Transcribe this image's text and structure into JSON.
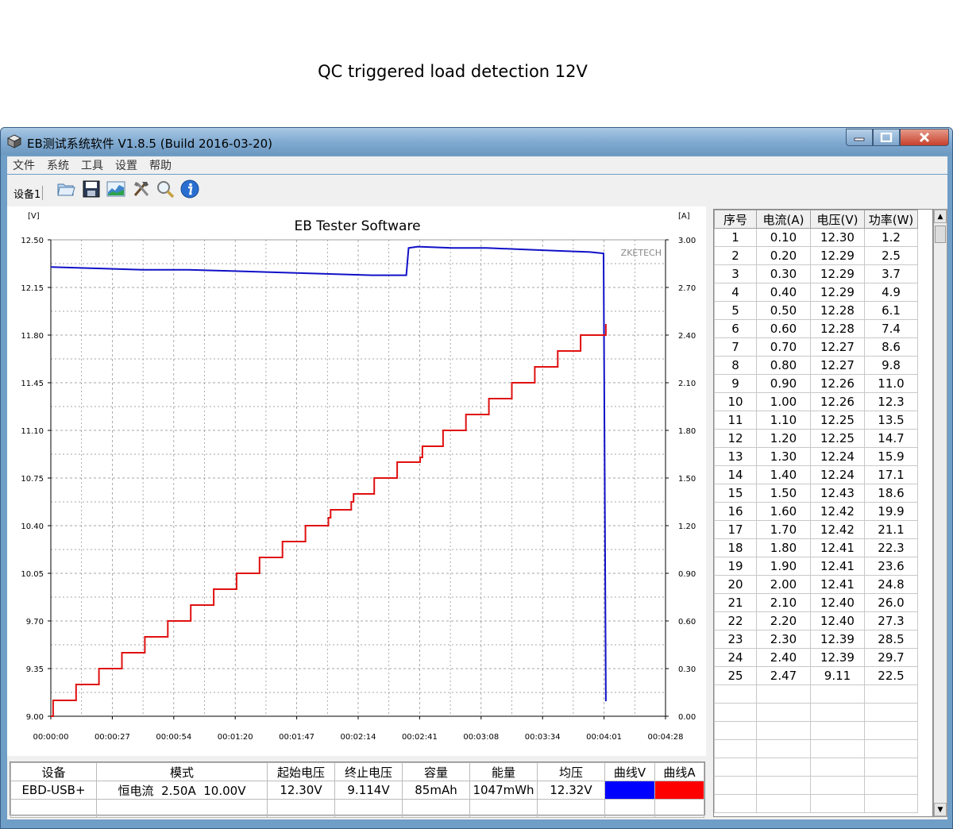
{
  "page_caption": "QC triggered load detection 12V",
  "window": {
    "title": "EB测试系统软件 V1.8.5 (Build 2016-03-20)",
    "menu": [
      "文件",
      "系统",
      "工具",
      "设置",
      "帮助"
    ],
    "device_tab": "设备1",
    "toolbar_icons": [
      "open-folder-icon",
      "save-icon",
      "chart-icon",
      "tools-icon",
      "search-icon",
      "info-icon"
    ]
  },
  "chart_data": {
    "type": "line",
    "title": "EB Tester Software",
    "watermark": "ZKETECH",
    "left_unit": "[V]",
    "right_unit": "[A]",
    "grid": true,
    "y_left": {
      "range": [
        9.0,
        12.5
      ],
      "ticks": [
        "12.50",
        "12.15",
        "11.80",
        "11.45",
        "11.10",
        "10.75",
        "10.40",
        "10.05",
        "9.70",
        "9.35",
        "9.00"
      ]
    },
    "y_right": {
      "range": [
        0.0,
        3.0
      ],
      "ticks": [
        "3.00",
        "2.70",
        "2.40",
        "2.10",
        "1.80",
        "1.50",
        "1.20",
        "0.90",
        "0.60",
        "0.30",
        "0.00"
      ]
    },
    "x_ticks": [
      "00:00:00",
      "00:00:27",
      "00:00:54",
      "00:01:20",
      "00:01:47",
      "00:02:14",
      "00:02:41",
      "00:03:08",
      "00:03:34",
      "00:04:01",
      "00:04:28"
    ],
    "x_range_seconds": [
      0,
      268
    ],
    "series": [
      {
        "name": "曲线V",
        "color": "#1010c8",
        "axis": "left",
        "points": [
          [
            0,
            12.3
          ],
          [
            20,
            12.29
          ],
          [
            40,
            12.28
          ],
          [
            60,
            12.28
          ],
          [
            80,
            12.27
          ],
          [
            100,
            12.26
          ],
          [
            120,
            12.25
          ],
          [
            140,
            12.24
          ],
          [
            155,
            12.24
          ],
          [
            156,
            12.44
          ],
          [
            160,
            12.45
          ],
          [
            175,
            12.44
          ],
          [
            190,
            12.44
          ],
          [
            205,
            12.43
          ],
          [
            220,
            12.42
          ],
          [
            235,
            12.41
          ],
          [
            241,
            12.4
          ],
          [
            242,
            9.11
          ]
        ]
      },
      {
        "name": "曲线A",
        "color": "#e01010",
        "axis": "right",
        "steps": [
          [
            0,
            0.0
          ],
          [
            1,
            0.1
          ],
          [
            11,
            0.2
          ],
          [
            21,
            0.3
          ],
          [
            31,
            0.4
          ],
          [
            41,
            0.5
          ],
          [
            51,
            0.6
          ],
          [
            61,
            0.7
          ],
          [
            71,
            0.8
          ],
          [
            81,
            0.9
          ],
          [
            91,
            1.0
          ],
          [
            101,
            1.1
          ],
          [
            111,
            1.2
          ],
          [
            121,
            1.25
          ],
          [
            122,
            1.3
          ],
          [
            131,
            1.35
          ],
          [
            132,
            1.4
          ],
          [
            141,
            1.5
          ],
          [
            151,
            1.6
          ],
          [
            161,
            1.63
          ],
          [
            162,
            1.7
          ],
          [
            171,
            1.8
          ],
          [
            181,
            1.9
          ],
          [
            191,
            2.0
          ],
          [
            201,
            2.1
          ],
          [
            211,
            2.2
          ],
          [
            221,
            2.3
          ],
          [
            231,
            2.4
          ],
          [
            242,
            2.47
          ]
        ]
      }
    ]
  },
  "stats": {
    "headers": [
      "设备",
      "模式",
      "起始电压",
      "终止电压",
      "容量",
      "能量",
      "均压",
      "曲线V",
      "曲线A"
    ],
    "values": [
      "EBD-USB+",
      "恒电流  2.50A  10.00V",
      "12.30V",
      "9.114V",
      "85mAh",
      "1047mWh",
      "12.32V"
    ],
    "curve_v_color": "#0000ff",
    "curve_a_color": "#ff0000"
  },
  "grid": {
    "headers": [
      "序号",
      "电流(A)",
      "电压(V)",
      "功率(W)"
    ],
    "rows": [
      [
        "1",
        "0.10",
        "12.30",
        "1.2"
      ],
      [
        "2",
        "0.20",
        "12.29",
        "2.5"
      ],
      [
        "3",
        "0.30",
        "12.29",
        "3.7"
      ],
      [
        "4",
        "0.40",
        "12.29",
        "4.9"
      ],
      [
        "5",
        "0.50",
        "12.28",
        "6.1"
      ],
      [
        "6",
        "0.60",
        "12.28",
        "7.4"
      ],
      [
        "7",
        "0.70",
        "12.27",
        "8.6"
      ],
      [
        "8",
        "0.80",
        "12.27",
        "9.8"
      ],
      [
        "9",
        "0.90",
        "12.26",
        "11.0"
      ],
      [
        "10",
        "1.00",
        "12.26",
        "12.3"
      ],
      [
        "11",
        "1.10",
        "12.25",
        "13.5"
      ],
      [
        "12",
        "1.20",
        "12.25",
        "14.7"
      ],
      [
        "13",
        "1.30",
        "12.24",
        "15.9"
      ],
      [
        "14",
        "1.40",
        "12.24",
        "17.1"
      ],
      [
        "15",
        "1.50",
        "12.43",
        "18.6"
      ],
      [
        "16",
        "1.60",
        "12.42",
        "19.9"
      ],
      [
        "17",
        "1.70",
        "12.42",
        "21.1"
      ],
      [
        "18",
        "1.80",
        "12.41",
        "22.3"
      ],
      [
        "19",
        "1.90",
        "12.41",
        "23.6"
      ],
      [
        "20",
        "2.00",
        "12.41",
        "24.8"
      ],
      [
        "21",
        "2.10",
        "12.40",
        "26.0"
      ],
      [
        "22",
        "2.20",
        "12.40",
        "27.3"
      ],
      [
        "23",
        "2.30",
        "12.39",
        "28.5"
      ],
      [
        "24",
        "2.40",
        "12.39",
        "29.7"
      ],
      [
        "25",
        "2.47",
        "9.11",
        "22.5"
      ]
    ]
  }
}
